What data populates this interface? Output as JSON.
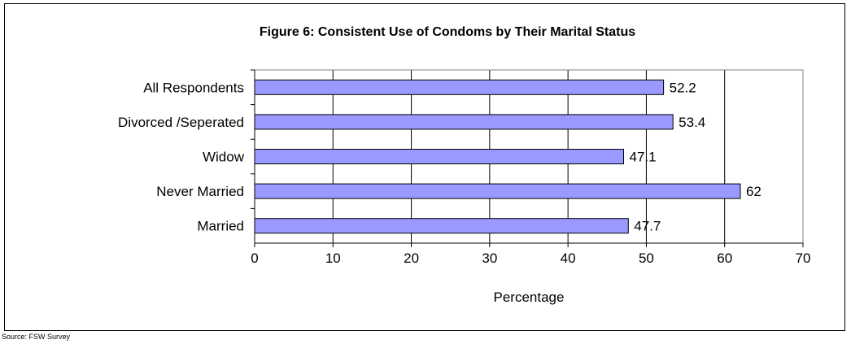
{
  "chart_data": {
    "type": "bar",
    "orientation": "horizontal",
    "title": "Figure 6: Consistent Use of Condoms by Their Marital Status",
    "xlabel": "Percentage",
    "ylabel": "",
    "categories": [
      "All Respondents",
      "Divorced /Seperated",
      "Widow",
      "Never Married",
      "Married"
    ],
    "values": [
      52.2,
      53.4,
      47.1,
      62,
      47.7
    ],
    "value_labels": [
      "52.2",
      "53.4",
      "47.1",
      "62",
      "47.7"
    ],
    "xlim": [
      0,
      70
    ],
    "xticks": [
      0,
      10,
      20,
      30,
      40,
      50,
      60,
      70
    ],
    "grid": true,
    "colors": {
      "bar_fill": "#9999ff",
      "bar_stroke": "#000000",
      "grid": "#000000"
    }
  },
  "source": "Source: FSW Survey"
}
